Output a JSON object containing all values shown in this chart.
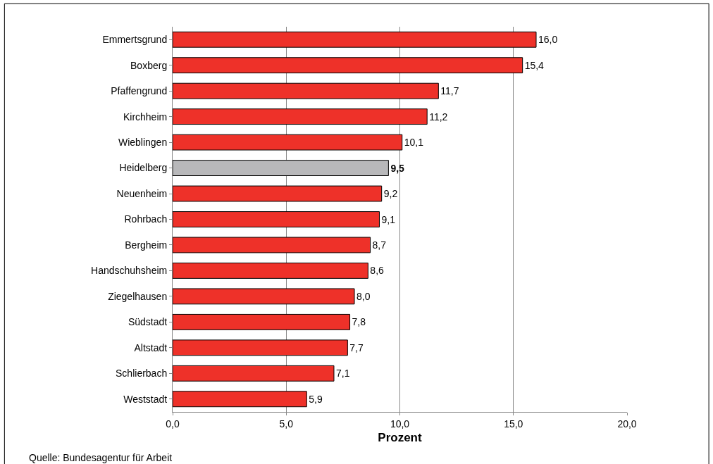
{
  "chart_data": {
    "type": "bar",
    "orientation": "horizontal",
    "xlabel": "Prozent",
    "categories": [
      "Emmertsgrund",
      "Boxberg",
      "Pfaffengrund",
      "Kirchheim",
      "Wieblingen",
      "Heidelberg",
      "Neuenheim",
      "Rohrbach",
      "Bergheim",
      "Handschuhsheim",
      "Ziegelhausen",
      "Südstadt",
      "Altstadt",
      "Schlierbach",
      "Weststadt"
    ],
    "values": [
      16.0,
      15.4,
      11.7,
      11.2,
      10.1,
      9.5,
      9.2,
      9.1,
      8.7,
      8.6,
      8.0,
      7.8,
      7.7,
      7.1,
      5.9
    ],
    "value_labels": [
      "16,0",
      "15,4",
      "11,7",
      "11,2",
      "10,1",
      "9,5",
      "9,2",
      "9,1",
      "8,7",
      "8,6",
      "8,0",
      "7,8",
      "7,7",
      "7,1",
      "5,9"
    ],
    "colors": [
      "#ee3129",
      "#ee3129",
      "#ee3129",
      "#ee3129",
      "#ee3129",
      "#b8b8ba",
      "#ee3129",
      "#ee3129",
      "#ee3129",
      "#ee3129",
      "#ee3129",
      "#ee3129",
      "#ee3129",
      "#ee3129",
      "#ee3129"
    ],
    "xlim": [
      0,
      20
    ],
    "xticks": [
      {
        "value": 0,
        "label": "0,0"
      },
      {
        "value": 5,
        "label": "5,0"
      },
      {
        "value": 10,
        "label": "10,0"
      },
      {
        "value": 15,
        "label": "15,0"
      },
      {
        "value": 20,
        "label": "20,0"
      }
    ],
    "grid": "x",
    "legend": false,
    "annotations": [
      "Quelle: Bundesagentur für Arbeit"
    ]
  }
}
